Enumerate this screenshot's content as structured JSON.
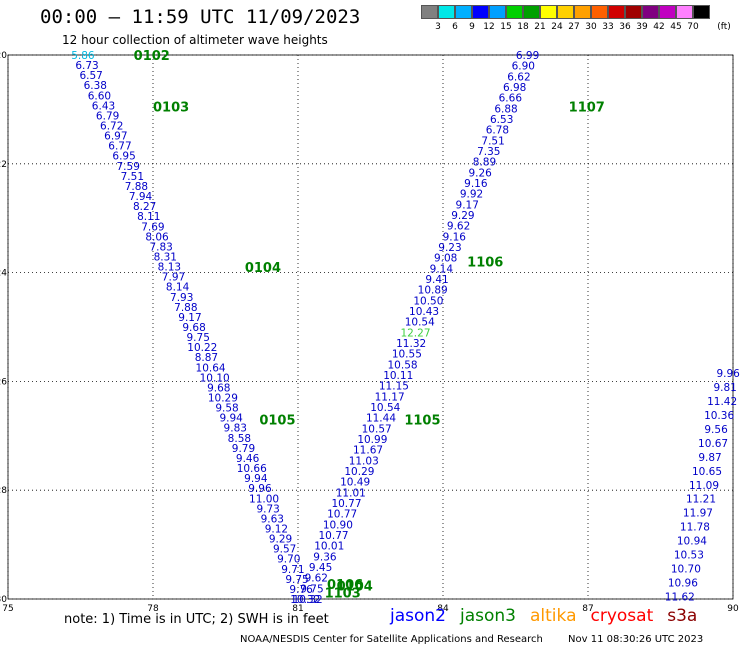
{
  "header": {
    "title": "00:00 – 11:59 UTC 11/09/2023",
    "subtitle": "12 hour collection of altimeter wave heights"
  },
  "color_scale": {
    "unit": "(ft)",
    "labels": [
      "3",
      "6",
      "9",
      "12",
      "15",
      "18",
      "21",
      "24",
      "27",
      "30",
      "33",
      "36",
      "39",
      "42",
      "45",
      "70"
    ],
    "colors": [
      "#808080",
      "#00e8e8",
      "#00b0ff",
      "#0000ff",
      "#00a0ff",
      "#00d000",
      "#00a000",
      "#ffff00",
      "#ffd000",
      "#ffa000",
      "#ff6000",
      "#d00000",
      "#a00000",
      "#800080",
      "#c000c0",
      "#ff80ff",
      "#000000"
    ]
  },
  "chart_data": {
    "type": "scatter",
    "xlim": [
      75,
      90
    ],
    "ylim": [
      -30,
      -20
    ],
    "x_ticks": [
      "75",
      "78",
      "81",
      "84",
      "87",
      "90"
    ],
    "y_ticks": [
      "-20",
      "-22",
      "-24",
      "-26",
      "-28",
      "-30"
    ],
    "grid": true,
    "swh_colors": {
      "lt6": "#00b8e0",
      "lt12": "#0000c8",
      "lt15": "#40d040"
    },
    "passes": [
      {
        "label": "0102",
        "lon": 77.6,
        "lat": -20.0
      },
      {
        "label": "0103",
        "lon": 78.0,
        "lat": -20.95
      },
      {
        "label": "0104",
        "lon": 79.9,
        "lat": -23.9
      },
      {
        "label": "0105",
        "lon": 80.2,
        "lat": -26.7
      },
      {
        "label": "0106",
        "lon": 81.6,
        "lat": -29.72
      },
      {
        "label": "0104",
        "lon": 81.8,
        "lat": -29.75
      },
      {
        "label": "1103",
        "lon": 81.55,
        "lat": -29.88
      },
      {
        "label": "1105",
        "lon": 83.2,
        "lat": -26.7
      },
      {
        "label": "1106",
        "lon": 84.5,
        "lat": -23.8
      },
      {
        "label": "1107",
        "lon": 86.6,
        "lat": -20.95
      }
    ],
    "tracks": [
      {
        "lon_start": 76.55,
        "lat_start": -20.0,
        "lon_end": 81.15,
        "lat_end": -30.0,
        "values": [
          "5.86",
          "6.73",
          "6.57",
          "6.38",
          "6.60",
          "6.43",
          "6.79",
          "6.72",
          "6.97",
          "6.77",
          "6.95",
          "7.59",
          "7.51",
          "7.88",
          "7.94",
          "8.27",
          "8.11",
          "7.69",
          "8.06",
          "7.83",
          "8.31",
          "8.13",
          "7.97",
          "8.14",
          "7.93",
          "7.88",
          "9.17",
          "9.68",
          "9.75",
          "10.22",
          "8.87",
          "10.64",
          "10.10",
          "9.68",
          "10.29",
          "9.58",
          "9.94",
          "9.83",
          "8.58",
          "9.79",
          "9.46",
          "10.66",
          "9.94",
          "9.96",
          "11.00",
          "9.73",
          "9.63",
          "9.12",
          "9.29",
          "9.57",
          "9.70",
          "9.71",
          "9.75",
          "9.76",
          "10.32"
        ]
      },
      {
        "lon_start": 81.2,
        "lat_start": -30.0,
        "lon_end": 85.75,
        "lat_end": -20.0,
        "values": [
          "10.32",
          "9.75",
          "9.62",
          "9.45",
          "9.36",
          "10.01",
          "10.77",
          "10.90",
          "10.77",
          "10.77",
          "11.01",
          "10.49",
          "10.29",
          "11.03",
          "11.67",
          "10.99",
          "10.57",
          "11.44",
          "10.54",
          "11.17",
          "11.15",
          "10.11",
          "10.58",
          "10.55",
          "11.32",
          "12.27",
          "10.54",
          "10.43",
          "10.50",
          "10.89",
          "9.41",
          "9.14",
          "9.08",
          "9.23",
          "9.16",
          "9.62",
          "9.29",
          "9.17",
          "9.92",
          "9.16",
          "9.26",
          "8.89",
          "7.35",
          "7.51",
          "6.78",
          "6.53",
          "6.88",
          "6.66",
          "6.98",
          "6.62",
          "6.90",
          "6.99"
        ]
      },
      {
        "lon_start": 89.9,
        "lat_start": -25.85,
        "lon_end": 88.9,
        "lat_end": -29.95,
        "values": [
          "9.96",
          "9.81",
          "11.42",
          "10.36",
          "9.56",
          "10.67",
          "9.87",
          "10.65",
          "11.09",
          "11.21",
          "11.97",
          "11.78",
          "10.94",
          "10.53",
          "10.70",
          "10.96",
          "11.62"
        ]
      }
    ]
  },
  "note": "note:  1) Time is in UTC;  2) SWH is in feet",
  "missions": [
    {
      "name": "jason2",
      "color": "#0000ff"
    },
    {
      "name": "jason3",
      "color": "#008000"
    },
    {
      "name": "altika",
      "color": "#ff9900"
    },
    {
      "name": "cryosat",
      "color": "#ff0000"
    },
    {
      "name": "s3a",
      "color": "#8b0000"
    }
  ],
  "footer": {
    "center": "NOAA/NESDIS Center for Satellite Applications and Research",
    "timestamp": "Nov 11 08:30:26 UTC 2023"
  }
}
